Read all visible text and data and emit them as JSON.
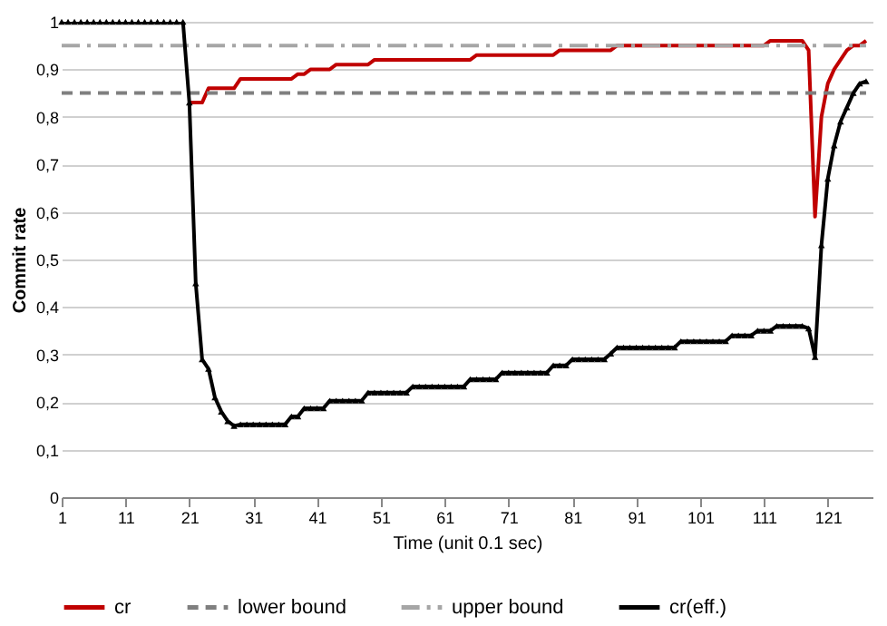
{
  "chart_data": {
    "type": "line",
    "xlabel": "Time (unit 0.1 sec)",
    "ylabel": "Commit rate",
    "x": [
      1,
      2,
      3,
      4,
      5,
      6,
      7,
      8,
      9,
      10,
      11,
      12,
      13,
      14,
      15,
      16,
      17,
      18,
      19,
      20,
      21,
      22,
      23,
      24,
      25,
      26,
      27,
      28,
      29,
      30,
      31,
      32,
      33,
      34,
      35,
      36,
      37,
      38,
      39,
      40,
      41,
      42,
      43,
      44,
      45,
      46,
      47,
      48,
      49,
      50,
      51,
      52,
      53,
      54,
      55,
      56,
      57,
      58,
      59,
      60,
      61,
      62,
      63,
      64,
      65,
      66,
      67,
      68,
      69,
      70,
      71,
      72,
      73,
      74,
      75,
      76,
      77,
      78,
      79,
      80,
      81,
      82,
      83,
      84,
      85,
      86,
      87,
      88,
      89,
      90,
      91,
      92,
      93,
      94,
      95,
      96,
      97,
      98,
      99,
      100,
      101,
      102,
      103,
      104,
      105,
      106,
      107,
      108,
      109,
      110,
      111,
      112,
      113,
      114,
      115,
      116,
      117,
      118,
      119,
      120,
      121,
      122,
      123,
      124,
      125,
      126,
      127
    ],
    "xlim": [
      1,
      128
    ],
    "xticks": [
      1,
      11,
      21,
      31,
      41,
      51,
      61,
      71,
      81,
      91,
      101,
      111,
      121
    ],
    "ylim": [
      0,
      1
    ],
    "yticks": [
      0,
      {
        "value": 0.1,
        "label": "0,1"
      },
      {
        "value": 0.2,
        "label": "0,2"
      },
      {
        "value": 0.3,
        "label": "0,3"
      },
      {
        "value": 0.4,
        "label": "0,4"
      },
      {
        "value": 0.5,
        "label": "0,5"
      },
      {
        "value": 0.6,
        "label": "0,6"
      },
      {
        "value": 0.7,
        "label": "0,7"
      },
      {
        "value": 0.8,
        "label": "0,8"
      },
      {
        "value": 0.9,
        "label": "0,9"
      },
      1
    ],
    "grid": "y",
    "legend": "bottom",
    "series": [
      {
        "name": "cr",
        "color": "#c00000",
        "line_style": "solid",
        "marker": "none",
        "values": [
          null,
          null,
          null,
          null,
          null,
          null,
          null,
          null,
          null,
          null,
          null,
          null,
          null,
          null,
          null,
          null,
          null,
          null,
          null,
          null,
          0.83,
          0.83,
          0.83,
          0.86,
          0.86,
          0.86,
          0.86,
          0.86,
          0.88,
          0.88,
          0.88,
          0.88,
          0.88,
          0.88,
          0.88,
          0.88,
          0.88,
          0.89,
          0.89,
          0.9,
          0.9,
          0.9,
          0.9,
          0.91,
          0.91,
          0.91,
          0.91,
          0.91,
          0.91,
          0.92,
          0.92,
          0.92,
          0.92,
          0.92,
          0.92,
          0.92,
          0.92,
          0.92,
          0.92,
          0.92,
          0.92,
          0.92,
          0.92,
          0.92,
          0.92,
          0.93,
          0.93,
          0.93,
          0.93,
          0.93,
          0.93,
          0.93,
          0.93,
          0.93,
          0.93,
          0.93,
          0.93,
          0.93,
          0.94,
          0.94,
          0.94,
          0.94,
          0.94,
          0.94,
          0.94,
          0.94,
          0.94,
          0.95,
          0.95,
          0.95,
          0.95,
          0.95,
          0.95,
          0.95,
          0.95,
          0.95,
          0.95,
          0.95,
          0.95,
          0.95,
          0.95,
          0.95,
          0.95,
          0.95,
          0.95,
          0.95,
          0.95,
          0.95,
          0.95,
          0.95,
          0.95,
          0.96,
          0.96,
          0.96,
          0.96,
          0.96,
          0.96,
          0.94,
          0.59,
          0.8,
          0.87,
          0.9,
          0.92,
          0.94,
          0.95,
          0.95,
          0.96
        ]
      },
      {
        "name": "lower bound",
        "color": "#7f7f7f",
        "line_style": "dashed",
        "marker": "none",
        "values": [
          0.85,
          0.85,
          0.85,
          0.85,
          0.85,
          0.85,
          0.85,
          0.85,
          0.85,
          0.85,
          0.85,
          0.85,
          0.85,
          0.85,
          0.85,
          0.85,
          0.85,
          0.85,
          0.85,
          0.85,
          0.85,
          0.85,
          0.85,
          0.85,
          0.85,
          0.85,
          0.85,
          0.85,
          0.85,
          0.85,
          0.85,
          0.85,
          0.85,
          0.85,
          0.85,
          0.85,
          0.85,
          0.85,
          0.85,
          0.85,
          0.85,
          0.85,
          0.85,
          0.85,
          0.85,
          0.85,
          0.85,
          0.85,
          0.85,
          0.85,
          0.85,
          0.85,
          0.85,
          0.85,
          0.85,
          0.85,
          0.85,
          0.85,
          0.85,
          0.85,
          0.85,
          0.85,
          0.85,
          0.85,
          0.85,
          0.85,
          0.85,
          0.85,
          0.85,
          0.85,
          0.85,
          0.85,
          0.85,
          0.85,
          0.85,
          0.85,
          0.85,
          0.85,
          0.85,
          0.85,
          0.85,
          0.85,
          0.85,
          0.85,
          0.85,
          0.85,
          0.85,
          0.85,
          0.85,
          0.85,
          0.85,
          0.85,
          0.85,
          0.85,
          0.85,
          0.85,
          0.85,
          0.85,
          0.85,
          0.85,
          0.85,
          0.85,
          0.85,
          0.85,
          0.85,
          0.85,
          0.85,
          0.85,
          0.85,
          0.85,
          0.85,
          0.85,
          0.85,
          0.85,
          0.85,
          0.85,
          0.85,
          0.85,
          0.85,
          0.85,
          0.85,
          0.85,
          0.85,
          0.85,
          0.85,
          0.85,
          0.85
        ]
      },
      {
        "name": "upper bound",
        "color": "#a6a6a6",
        "line_style": "dashdot",
        "marker": "none",
        "values": [
          0.95,
          0.95,
          0.95,
          0.95,
          0.95,
          0.95,
          0.95,
          0.95,
          0.95,
          0.95,
          0.95,
          0.95,
          0.95,
          0.95,
          0.95,
          0.95,
          0.95,
          0.95,
          0.95,
          0.95,
          0.95,
          0.95,
          0.95,
          0.95,
          0.95,
          0.95,
          0.95,
          0.95,
          0.95,
          0.95,
          0.95,
          0.95,
          0.95,
          0.95,
          0.95,
          0.95,
          0.95,
          0.95,
          0.95,
          0.95,
          0.95,
          0.95,
          0.95,
          0.95,
          0.95,
          0.95,
          0.95,
          0.95,
          0.95,
          0.95,
          0.95,
          0.95,
          0.95,
          0.95,
          0.95,
          0.95,
          0.95,
          0.95,
          0.95,
          0.95,
          0.95,
          0.95,
          0.95,
          0.95,
          0.95,
          0.95,
          0.95,
          0.95,
          0.95,
          0.95,
          0.95,
          0.95,
          0.95,
          0.95,
          0.95,
          0.95,
          0.95,
          0.95,
          0.95,
          0.95,
          0.95,
          0.95,
          0.95,
          0.95,
          0.95,
          0.95,
          0.95,
          0.95,
          0.95,
          0.95,
          0.95,
          0.95,
          0.95,
          0.95,
          0.95,
          0.95,
          0.95,
          0.95,
          0.95,
          0.95,
          0.95,
          0.95,
          0.95,
          0.95,
          0.95,
          0.95,
          0.95,
          0.95,
          0.95,
          0.95,
          0.95,
          0.95,
          0.95,
          0.95,
          0.95,
          0.95,
          0.95,
          0.95,
          0.95,
          0.95,
          0.95,
          0.95,
          0.95,
          0.95,
          0.95,
          0.95,
          0.95
        ]
      },
      {
        "name": "cr(eff.)",
        "color": "#000000",
        "line_style": "solid",
        "marker": "triangle",
        "values": [
          1,
          1,
          1,
          1,
          1,
          1,
          1,
          1,
          1,
          1,
          1,
          1,
          1,
          1,
          1,
          1,
          1,
          1,
          1,
          1,
          0.83,
          0.45,
          0.29,
          0.27,
          0.21,
          0.18,
          0.16,
          0.15,
          0.153,
          0.153,
          0.153,
          0.153,
          0.153,
          0.153,
          0.153,
          0.153,
          0.17,
          0.17,
          0.187,
          0.187,
          0.187,
          0.187,
          0.203,
          0.203,
          0.203,
          0.203,
          0.203,
          0.203,
          0.22,
          0.22,
          0.22,
          0.22,
          0.22,
          0.22,
          0.22,
          0.233,
          0.233,
          0.233,
          0.233,
          0.233,
          0.233,
          0.233,
          0.233,
          0.233,
          0.248,
          0.248,
          0.248,
          0.248,
          0.248,
          0.262,
          0.262,
          0.262,
          0.262,
          0.262,
          0.262,
          0.262,
          0.262,
          0.277,
          0.277,
          0.277,
          0.29,
          0.29,
          0.29,
          0.29,
          0.29,
          0.29,
          0.302,
          0.315,
          0.315,
          0.315,
          0.315,
          0.315,
          0.315,
          0.315,
          0.315,
          0.315,
          0.315,
          0.328,
          0.328,
          0.328,
          0.328,
          0.328,
          0.328,
          0.328,
          0.328,
          0.34,
          0.34,
          0.34,
          0.34,
          0.35,
          0.35,
          0.35,
          0.36,
          0.36,
          0.36,
          0.36,
          0.36,
          0.355,
          0.295,
          0.53,
          0.67,
          0.74,
          0.79,
          0.82,
          0.85,
          0.87,
          0.875
        ]
      }
    ]
  }
}
